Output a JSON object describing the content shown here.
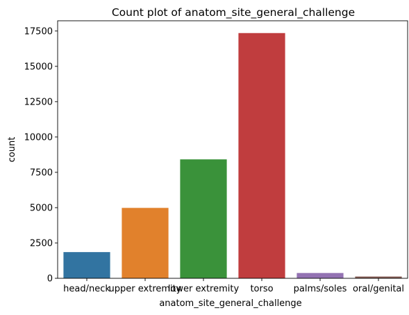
{
  "chart_data": {
    "type": "bar",
    "title": "Count plot of anatom_site_general_challenge",
    "xlabel": "anatom_site_general_challenge",
    "ylabel": "count",
    "categories": [
      "head/neck",
      "upper extremity",
      "lower extremity",
      "torso",
      "palms/soles",
      "oral/genital"
    ],
    "values": [
      1855,
      4983,
      8417,
      17355,
      375,
      124
    ],
    "colors": [
      "#3274a1",
      "#e1812c",
      "#3a923a",
      "#c03d3e",
      "#9372b2",
      "#845b53"
    ],
    "ylim": [
      0,
      18225
    ],
    "yticks": [
      0,
      2500,
      5000,
      7500,
      10000,
      12500,
      15000,
      17500
    ],
    "ytick_labels": [
      "0",
      "2500",
      "5000",
      "7500",
      "10000",
      "12500",
      "15000",
      "17500"
    ],
    "grid": false,
    "legend": "none"
  }
}
